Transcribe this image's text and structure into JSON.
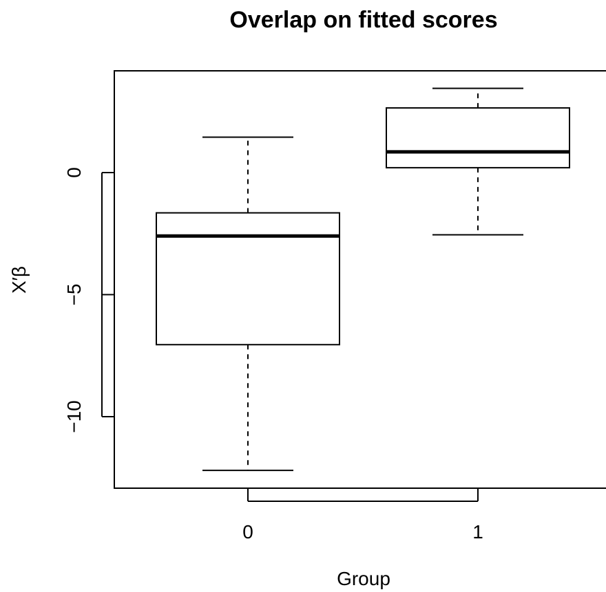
{
  "chart_data": {
    "type": "boxplot",
    "title": "Overlap on fitted scores",
    "xlabel": "Group",
    "ylabel": "X′β",
    "categories": [
      "0",
      "1"
    ],
    "boxes": [
      {
        "group": "0",
        "whisker_low": -12.2,
        "q1": -7.05,
        "median": -2.6,
        "q3": -1.65,
        "whisker_high": 1.45
      },
      {
        "group": "1",
        "whisker_low": -2.55,
        "q1": 0.2,
        "median": 0.85,
        "q3": 2.65,
        "whisker_high": 3.45
      }
    ],
    "yticks": [
      0,
      -5,
      -10
    ],
    "ytick_labels": [
      "0",
      "−5",
      "−10"
    ],
    "ylim": [
      -12.8,
      4.1
    ],
    "grid": false,
    "legend": "none"
  }
}
